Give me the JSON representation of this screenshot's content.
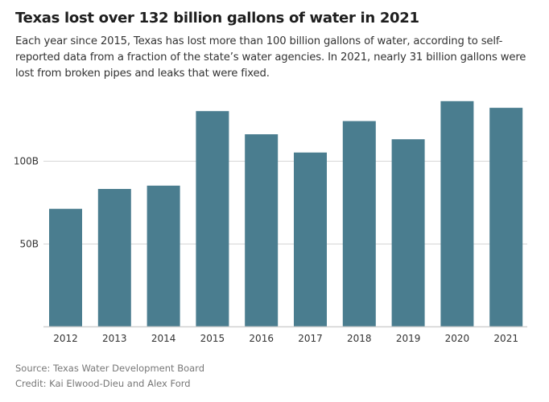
{
  "header": {
    "title": "Texas lost over 132 billion gallons of water in 2021",
    "subtitle": "Each year since 2015, Texas has lost more than 100 billion gallons of water, according to self-reported data from a fraction of the state’s water agencies. In 2021, nearly 31 billion gallons were lost from broken pipes and leaks that were fixed."
  },
  "footer": {
    "source": "Source: Texas Water Development Board",
    "credit": "Credit: Kai Elwood-Dieu and Alex Ford"
  },
  "chart_data": {
    "type": "bar",
    "title": "Texas lost over 132 billion gallons of water in 2021",
    "xlabel": "",
    "ylabel": "",
    "categories": [
      "2012",
      "2013",
      "2014",
      "2015",
      "2016",
      "2017",
      "2018",
      "2019",
      "2020",
      "2021"
    ],
    "values": [
      71,
      83,
      85,
      130,
      116,
      105,
      124,
      113,
      136,
      132
    ],
    "unit": "billion gallons",
    "ylim": [
      0,
      140
    ],
    "yticks": [
      {
        "value": 50,
        "label": "50B"
      },
      {
        "value": 100,
        "label": "100B"
      }
    ],
    "grid": true,
    "bar_color": "#4a7d8f",
    "grid_color": "#d6d6d6"
  }
}
